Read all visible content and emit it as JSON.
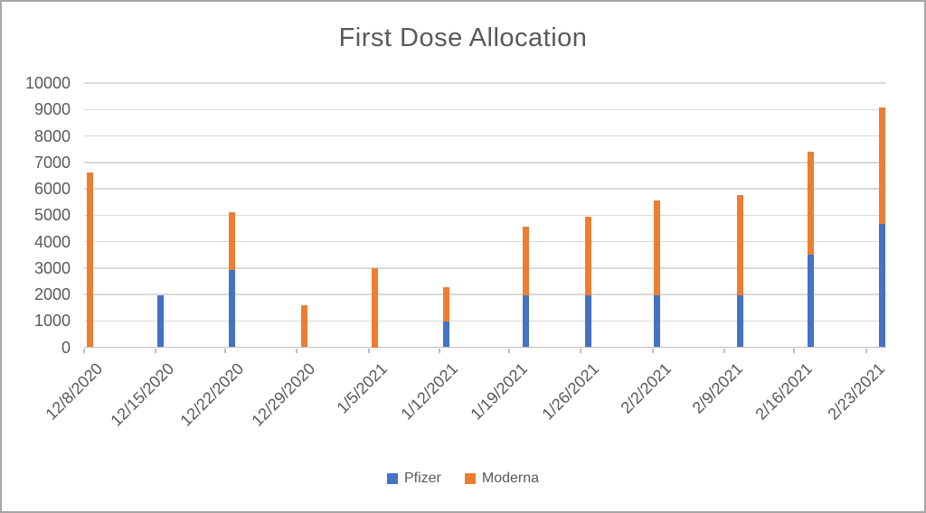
{
  "title": "First Dose Allocation",
  "colors": {
    "pfizer_blue": "#4472C4",
    "moderna_orange": "#ED7D31",
    "gridline": "#D9D9D9",
    "axis_line": "#BFBFBF",
    "label_text": "#595959",
    "chart_border": "#A6A6A6",
    "background": "#FFFFFF"
  },
  "legend": {
    "items": [
      {
        "label": "Pfizer",
        "color": "#4472C4"
      },
      {
        "label": "Moderna",
        "color": "#ED7D31"
      }
    ]
  },
  "y_axis": {
    "tick_labels": [
      "0",
      "1000",
      "2000",
      "3000",
      "4000",
      "5000",
      "6000",
      "7000",
      "8000",
      "9000",
      "10000"
    ]
  },
  "chart_data": {
    "type": "bar",
    "stacked": true,
    "title": "First Dose Allocation",
    "categories": [
      "12/8/2020",
      "12/15/2020",
      "12/22/2020",
      "12/29/2020",
      "1/5/2021",
      "1/12/2021",
      "1/19/2021",
      "1/26/2021",
      "2/2/2021",
      "2/9/2021",
      "2/16/2021",
      "2/23/2021"
    ],
    "series": [
      {
        "name": "Pfizer",
        "color": "#4472C4",
        "values": [
          0,
          1950,
          2925,
          0,
          0,
          975,
          1950,
          1950,
          1950,
          1950,
          3510,
          4680
        ]
      },
      {
        "name": "Moderna",
        "color": "#ED7D31",
        "values": [
          6600,
          0,
          2200,
          1600,
          3000,
          1300,
          2600,
          3000,
          3600,
          3800,
          3900,
          4400
        ]
      }
    ],
    "totals": [
      6600,
      1950,
      5125,
      1600,
      3000,
      2275,
      4550,
      4950,
      5550,
      5750,
      7410,
      9080
    ],
    "xlabel": "",
    "ylabel": "",
    "ylim": [
      0,
      10000
    ],
    "ytick_interval": 1000,
    "grid": "horizontal",
    "legend_position": "bottom"
  }
}
